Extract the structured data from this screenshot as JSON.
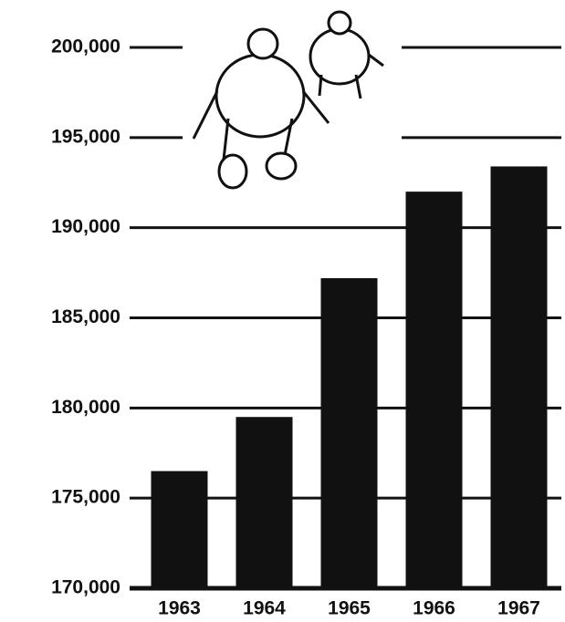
{
  "chart_data": {
    "type": "bar",
    "categories": [
      "1963",
      "1964",
      "1965",
      "1966",
      "1967"
    ],
    "values": [
      176500,
      179500,
      187200,
      192000,
      193400
    ],
    "color": "#111111",
    "ylim": [
      170000,
      200000
    ],
    "yticks": [
      {
        "value": 170000,
        "label": "170,000"
      },
      {
        "value": 175000,
        "label": "175,000"
      },
      {
        "value": 180000,
        "label": "180,000"
      },
      {
        "value": 185000,
        "label": "185,000"
      },
      {
        "value": 190000,
        "label": "190,000"
      },
      {
        "value": 195000,
        "label": "195,000"
      },
      {
        "value": 200000,
        "label": "200,000"
      }
    ],
    "grid": true
  }
}
